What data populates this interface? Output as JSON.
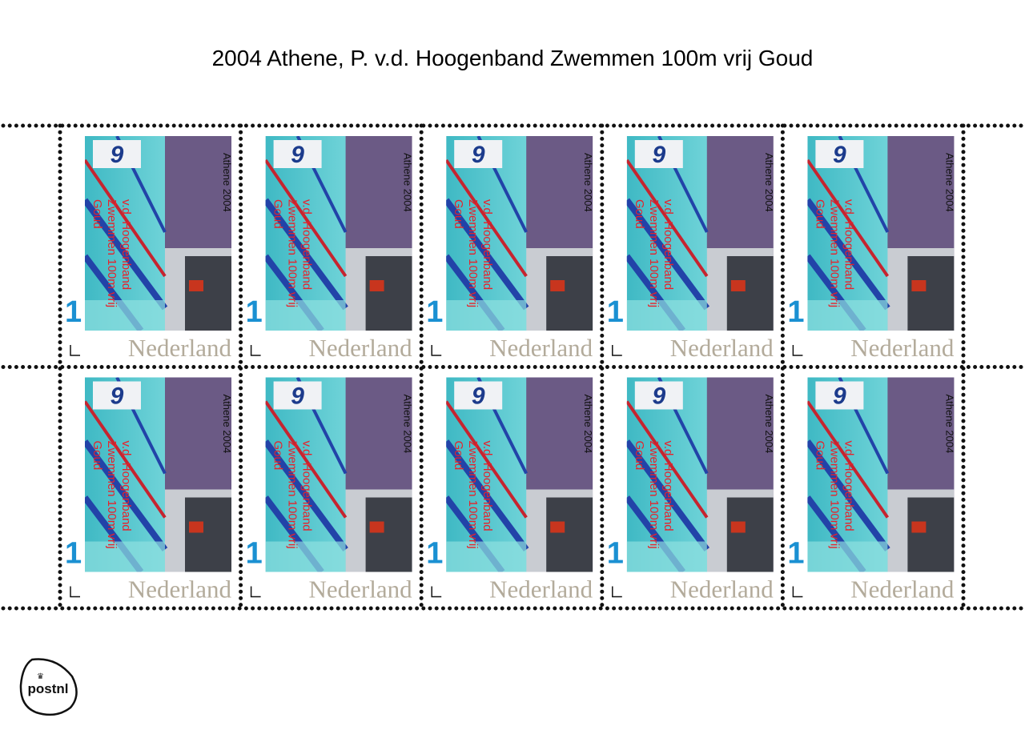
{
  "title": "2004 Athene, P. v.d. Hoogenband Zwemmen 100m vrij  Goud",
  "stamp": {
    "caption": "Athene 2004",
    "lines": [
      "v.d. Hoogenband",
      "Zwemmen 100m vrij",
      "Goud"
    ],
    "value": "1",
    "country": "Nederland"
  },
  "logo": "postnl"
}
